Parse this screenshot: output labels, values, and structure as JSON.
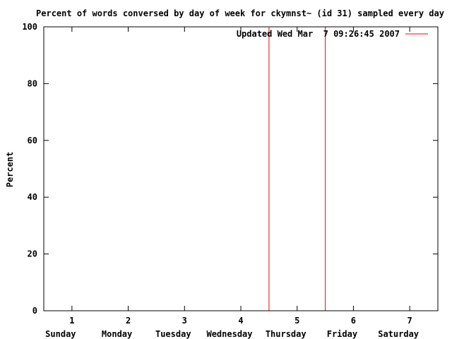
{
  "chart_data": {
    "type": "line",
    "title": "Percent of words conversed by day of week for ckymnst~ (id 31) sampled every day",
    "xlabel": "",
    "ylabel": "Percent",
    "xlim": [
      0.5,
      7.5
    ],
    "ylim": [
      0,
      100
    ],
    "xticks": [
      1,
      2,
      3,
      4,
      5,
      6,
      7
    ],
    "xtick_labels": [
      "1",
      "2",
      "3",
      "4",
      "5",
      "6",
      "7"
    ],
    "yticks": [
      0,
      20,
      40,
      60,
      80,
      100
    ],
    "ytick_labels": [
      "0",
      "20",
      "40",
      "60",
      "80",
      "100"
    ],
    "categories": [
      "Sunday",
      "Monday",
      "Tuesday",
      "Wednesday",
      "Thursday",
      "Friday",
      "Saturday"
    ],
    "series": [
      {
        "name": "Updated Wed Mar  7 09:26:45 2007",
        "color": "#ff0000",
        "x": [
          4.5,
          4.5,
          5.5,
          5.5
        ],
        "y": [
          0,
          100,
          100,
          0
        ]
      }
    ],
    "grid": false,
    "legend": "top-right"
  }
}
